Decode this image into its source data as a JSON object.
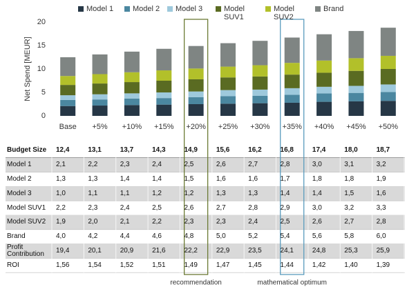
{
  "chart_data": {
    "type": "bar",
    "stacked": true,
    "y_label": "Net Spend [MEUR]",
    "categories": [
      "Base",
      "+5%",
      "+10%",
      "+15%",
      "+20%",
      "+25%",
      "+30%",
      "+35%",
      "+40%",
      "+45%",
      "+50%"
    ],
    "series": [
      {
        "name": "Model 1",
        "color": "#263746",
        "values": [
          2.1,
          2.2,
          2.3,
          2.4,
          2.5,
          2.6,
          2.7,
          2.8,
          3.0,
          3.1,
          3.2
        ],
        "value_labels": [
          "2,1",
          "2,2",
          "2,3",
          "2,4",
          "2,5",
          "2,6",
          "2,7",
          "2,8",
          "3,0",
          "3,1",
          "3,2"
        ]
      },
      {
        "name": "Model 2",
        "color": "#4b87a0",
        "values": [
          1.3,
          1.3,
          1.4,
          1.4,
          1.5,
          1.6,
          1.6,
          1.7,
          1.8,
          1.8,
          1.9
        ],
        "value_labels": [
          "1,3",
          "1,3",
          "1,4",
          "1,4",
          "1,5",
          "1,6",
          "1,6",
          "1,7",
          "1,8",
          "1,8",
          "1,9"
        ]
      },
      {
        "name": "Model 3",
        "color": "#9ec9dc",
        "values": [
          1.0,
          1.1,
          1.1,
          1.2,
          1.2,
          1.3,
          1.3,
          1.4,
          1.4,
          1.5,
          1.6
        ],
        "value_labels": [
          "1,0",
          "1,1",
          "1,1",
          "1,2",
          "1,2",
          "1,3",
          "1,3",
          "1,4",
          "1,4",
          "1,5",
          "1,6"
        ]
      },
      {
        "name": "Model SUV1",
        "color": "#5a6b22",
        "values": [
          2.2,
          2.3,
          2.4,
          2.5,
          2.6,
          2.7,
          2.8,
          2.9,
          3.0,
          3.2,
          3.3
        ],
        "value_labels": [
          "2,2",
          "2,3",
          "2,4",
          "2,5",
          "2,6",
          "2,7",
          "2,8",
          "2,9",
          "3,0",
          "3,2",
          "3,3"
        ]
      },
      {
        "name": "Model SUV2",
        "color": "#b2c02a",
        "values": [
          1.9,
          2.0,
          2.1,
          2.2,
          2.3,
          2.3,
          2.4,
          2.5,
          2.6,
          2.7,
          2.8
        ],
        "value_labels": [
          "1,9",
          "2,0",
          "2,1",
          "2,2",
          "2,3",
          "2,3",
          "2,4",
          "2,5",
          "2,6",
          "2,7",
          "2,8"
        ]
      },
      {
        "name": "Brand",
        "color": "#7f8583",
        "values": [
          4.0,
          4.2,
          4.4,
          4.6,
          4.8,
          5.0,
          5.2,
          5.4,
          5.6,
          5.8,
          6.0
        ],
        "value_labels": [
          "4,0",
          "4,2",
          "4,4",
          "4,6",
          "4,8",
          "5,0",
          "5,2",
          "5,4",
          "5,6",
          "5,8",
          "6,0"
        ]
      }
    ],
    "ylim": [
      0,
      20
    ],
    "yticks": [
      0,
      5,
      10,
      15,
      20
    ],
    "grid": false
  },
  "table": {
    "budget_size": {
      "label": "Budget Size",
      "values": [
        12.4,
        13.1,
        13.7,
        14.3,
        14.9,
        15.6,
        16.2,
        16.8,
        17.4,
        18.0,
        18.7
      ],
      "value_labels": [
        "12,4",
        "13,1",
        "13,7",
        "14,3",
        "14,9",
        "15,6",
        "16,2",
        "16,8",
        "17,4",
        "18,0",
        "18,7"
      ]
    },
    "profit_contribution": {
      "label": "Profit Contribution",
      "values": [
        19.4,
        20.1,
        20.9,
        21.6,
        22.2,
        22.9,
        23.5,
        24.1,
        24.8,
        25.3,
        25.9
      ],
      "value_labels": [
        "19,4",
        "20,1",
        "20,9",
        "21,6",
        "22,2",
        "22,9",
        "23,5",
        "24,1",
        "24,8",
        "25,3",
        "25,9"
      ]
    },
    "roi": {
      "label": "ROI",
      "values": [
        1.56,
        1.54,
        1.52,
        1.51,
        1.49,
        1.47,
        1.45,
        1.44,
        1.42,
        1.4,
        1.39
      ],
      "value_labels": [
        "1,56",
        "1,54",
        "1,52",
        "1,51",
        "1,49",
        "1,47",
        "1,45",
        "1,44",
        "1,42",
        "1,40",
        "1,39"
      ]
    }
  },
  "annotations": [
    {
      "label": "recommendation",
      "category": "+20%",
      "color": "#6b7a34"
    },
    {
      "label": "mathematical optimum",
      "category": "+35%",
      "color": "#5a9bbd"
    }
  ]
}
